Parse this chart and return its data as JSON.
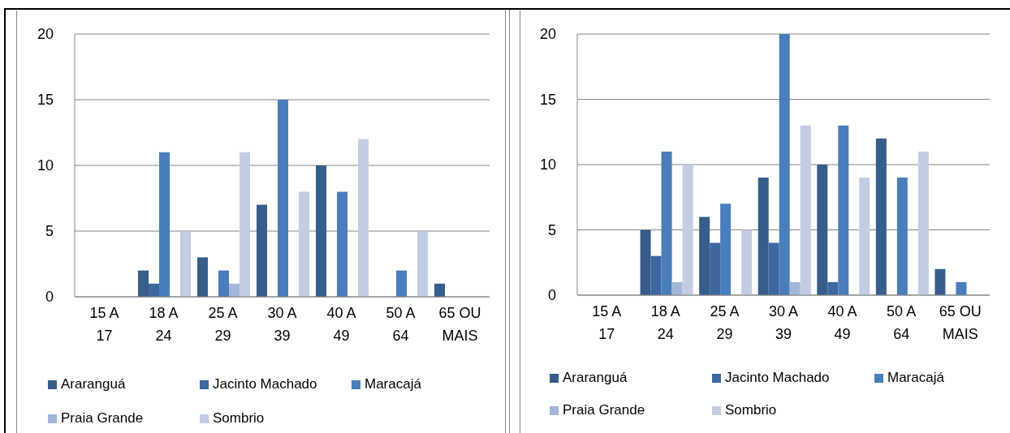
{
  "chart_data": [
    {
      "type": "bar",
      "categories": [
        "15 A 17",
        "18 A 24",
        "25 A 29",
        "30 A 39",
        "40 A 49",
        "50 A 64",
        "65 OU MAIS"
      ],
      "series": [
        {
          "name": "Araranguá",
          "color": "#375d8a",
          "values": [
            0,
            2,
            3,
            7,
            10,
            0,
            1
          ]
        },
        {
          "name": "Jacinto Machado",
          "color": "#3d67a0",
          "values": [
            0,
            1,
            0,
            0,
            0,
            0,
            0
          ]
        },
        {
          "name": "Maracajá",
          "color": "#4a7dbb",
          "values": [
            0,
            11,
            2,
            15,
            8,
            2,
            0
          ]
        },
        {
          "name": "Praia Grande",
          "color": "#a3b6da",
          "values": [
            0,
            0,
            1,
            0,
            0,
            0,
            0
          ]
        },
        {
          "name": "Sombrio",
          "color": "#c2cde3",
          "values": [
            0,
            5,
            11,
            8,
            12,
            5,
            0
          ]
        }
      ],
      "ylim": [
        0,
        20
      ],
      "yticks": [
        0,
        5,
        10,
        15,
        20
      ],
      "grid": "y",
      "legend": "bottom"
    },
    {
      "type": "bar",
      "categories": [
        "15 A 17",
        "18 A 24",
        "25 A 29",
        "30 A 39",
        "40 A 49",
        "50 A 64",
        "65 OU MAIS"
      ],
      "series": [
        {
          "name": "Araranguá",
          "color": "#375d8a",
          "values": [
            0,
            5,
            6,
            9,
            10,
            12,
            2
          ]
        },
        {
          "name": "Jacinto Machado",
          "color": "#3d67a0",
          "values": [
            0,
            3,
            4,
            4,
            1,
            0,
            0
          ]
        },
        {
          "name": "Maracajá",
          "color": "#4a7dbb",
          "values": [
            0,
            11,
            7,
            20,
            13,
            9,
            1
          ]
        },
        {
          "name": "Praia Grande",
          "color": "#a3b6da",
          "values": [
            0,
            1,
            0,
            1,
            0,
            0,
            0
          ]
        },
        {
          "name": "Sombrio",
          "color": "#c2cde3",
          "values": [
            0,
            10,
            5,
            13,
            9,
            11,
            0
          ]
        }
      ],
      "ylim": [
        0,
        20
      ],
      "yticks": [
        0,
        5,
        10,
        15,
        20
      ],
      "grid": "y",
      "legend": "bottom"
    }
  ]
}
